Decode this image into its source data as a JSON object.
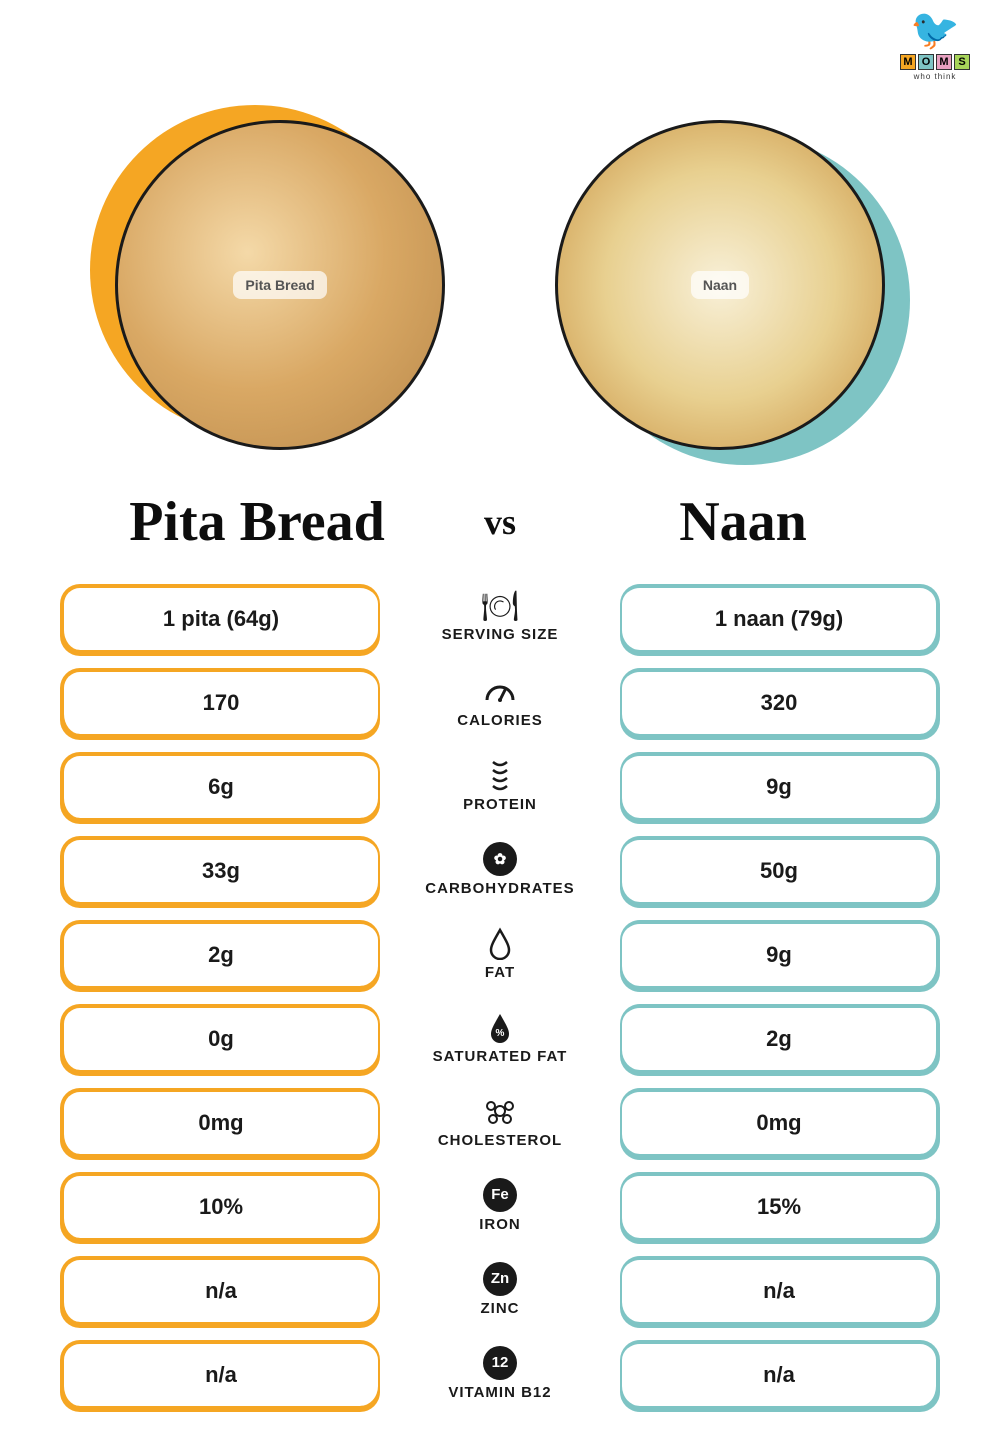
{
  "logo": {
    "letters": [
      "M",
      "O",
      "M",
      "S"
    ],
    "letter_bg": [
      "#f5a623",
      "#7ec4c4",
      "#e8a0c0",
      "#a8d45a"
    ],
    "subtitle": "who think"
  },
  "left": {
    "title": "Pita Bread",
    "image_label": "Pita Bread",
    "accent_color": "#f5a623"
  },
  "right": {
    "title": "Naan",
    "image_label": "Naan",
    "accent_color": "#7ec4c4"
  },
  "vs": "vs",
  "rows": [
    {
      "left": "1 pita (64g)",
      "icon": "serving",
      "label": "SERVING SIZE",
      "right": "1 naan (79g)"
    },
    {
      "left": "170",
      "icon": "calories",
      "label": "CALORIES",
      "right": "320"
    },
    {
      "left": "6g",
      "icon": "protein",
      "label": "PROTEIN",
      "right": "9g"
    },
    {
      "left": "33g",
      "icon": "carbs",
      "label": "CARBOHYDRATES",
      "right": "50g"
    },
    {
      "left": "2g",
      "icon": "fat",
      "label": "FAT",
      "right": "9g"
    },
    {
      "left": "0g",
      "icon": "satfat",
      "label": "SATURATED FAT",
      "right": "2g"
    },
    {
      "left": "0mg",
      "icon": "chol",
      "label": "CHOLESTEROL",
      "right": "0mg"
    },
    {
      "left": "10%",
      "icon": "iron",
      "label": "IRON",
      "right": "15%"
    },
    {
      "left": "n/a",
      "icon": "zinc",
      "label": "ZINC",
      "right": "n/a"
    },
    {
      "left": "n/a",
      "icon": "b12",
      "label": "VITAMIN B12",
      "right": "n/a"
    }
  ],
  "icons": {
    "serving": {
      "type": "glyph",
      "glyph": "🍽"
    },
    "calories": {
      "type": "svg",
      "svg": "gauge"
    },
    "protein": {
      "type": "svg",
      "svg": "dna"
    },
    "carbs": {
      "type": "circle",
      "text": "✿"
    },
    "fat": {
      "type": "svg",
      "svg": "drop"
    },
    "satfat": {
      "type": "svg",
      "svg": "drop-fill"
    },
    "chol": {
      "type": "svg",
      "svg": "molecule"
    },
    "iron": {
      "type": "circle",
      "text": "Fe"
    },
    "zinc": {
      "type": "circle",
      "text": "Zn"
    },
    "b12": {
      "type": "circle",
      "text": "12"
    }
  }
}
